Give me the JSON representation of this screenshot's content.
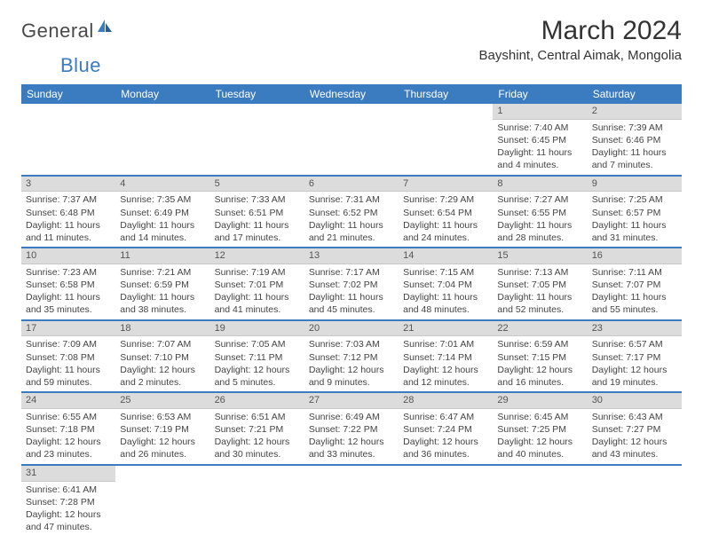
{
  "logo": {
    "part1": "General",
    "part2": "Blue"
  },
  "title": "March 2024",
  "location": "Bayshint, Central Aimak, Mongolia",
  "weekdays": [
    "Sunday",
    "Monday",
    "Tuesday",
    "Wednesday",
    "Thursday",
    "Friday",
    "Saturday"
  ],
  "colors": {
    "header_bar": "#3b7bbf",
    "day_bar": "#dcdcdc",
    "text": "#444444",
    "accent": "#3b7bbf"
  },
  "weeks": [
    [
      {
        "empty": true
      },
      {
        "empty": true
      },
      {
        "empty": true
      },
      {
        "empty": true
      },
      {
        "empty": true
      },
      {
        "day": "1",
        "sunrise": "Sunrise: 7:40 AM",
        "sunset": "Sunset: 6:45 PM",
        "daylight": "Daylight: 11 hours and 4 minutes."
      },
      {
        "day": "2",
        "sunrise": "Sunrise: 7:39 AM",
        "sunset": "Sunset: 6:46 PM",
        "daylight": "Daylight: 11 hours and 7 minutes."
      }
    ],
    [
      {
        "day": "3",
        "sunrise": "Sunrise: 7:37 AM",
        "sunset": "Sunset: 6:48 PM",
        "daylight": "Daylight: 11 hours and 11 minutes."
      },
      {
        "day": "4",
        "sunrise": "Sunrise: 7:35 AM",
        "sunset": "Sunset: 6:49 PM",
        "daylight": "Daylight: 11 hours and 14 minutes."
      },
      {
        "day": "5",
        "sunrise": "Sunrise: 7:33 AM",
        "sunset": "Sunset: 6:51 PM",
        "daylight": "Daylight: 11 hours and 17 minutes."
      },
      {
        "day": "6",
        "sunrise": "Sunrise: 7:31 AM",
        "sunset": "Sunset: 6:52 PM",
        "daylight": "Daylight: 11 hours and 21 minutes."
      },
      {
        "day": "7",
        "sunrise": "Sunrise: 7:29 AM",
        "sunset": "Sunset: 6:54 PM",
        "daylight": "Daylight: 11 hours and 24 minutes."
      },
      {
        "day": "8",
        "sunrise": "Sunrise: 7:27 AM",
        "sunset": "Sunset: 6:55 PM",
        "daylight": "Daylight: 11 hours and 28 minutes."
      },
      {
        "day": "9",
        "sunrise": "Sunrise: 7:25 AM",
        "sunset": "Sunset: 6:57 PM",
        "daylight": "Daylight: 11 hours and 31 minutes."
      }
    ],
    [
      {
        "day": "10",
        "sunrise": "Sunrise: 7:23 AM",
        "sunset": "Sunset: 6:58 PM",
        "daylight": "Daylight: 11 hours and 35 minutes."
      },
      {
        "day": "11",
        "sunrise": "Sunrise: 7:21 AM",
        "sunset": "Sunset: 6:59 PM",
        "daylight": "Daylight: 11 hours and 38 minutes."
      },
      {
        "day": "12",
        "sunrise": "Sunrise: 7:19 AM",
        "sunset": "Sunset: 7:01 PM",
        "daylight": "Daylight: 11 hours and 41 minutes."
      },
      {
        "day": "13",
        "sunrise": "Sunrise: 7:17 AM",
        "sunset": "Sunset: 7:02 PM",
        "daylight": "Daylight: 11 hours and 45 minutes."
      },
      {
        "day": "14",
        "sunrise": "Sunrise: 7:15 AM",
        "sunset": "Sunset: 7:04 PM",
        "daylight": "Daylight: 11 hours and 48 minutes."
      },
      {
        "day": "15",
        "sunrise": "Sunrise: 7:13 AM",
        "sunset": "Sunset: 7:05 PM",
        "daylight": "Daylight: 11 hours and 52 minutes."
      },
      {
        "day": "16",
        "sunrise": "Sunrise: 7:11 AM",
        "sunset": "Sunset: 7:07 PM",
        "daylight": "Daylight: 11 hours and 55 minutes."
      }
    ],
    [
      {
        "day": "17",
        "sunrise": "Sunrise: 7:09 AM",
        "sunset": "Sunset: 7:08 PM",
        "daylight": "Daylight: 11 hours and 59 minutes."
      },
      {
        "day": "18",
        "sunrise": "Sunrise: 7:07 AM",
        "sunset": "Sunset: 7:10 PM",
        "daylight": "Daylight: 12 hours and 2 minutes."
      },
      {
        "day": "19",
        "sunrise": "Sunrise: 7:05 AM",
        "sunset": "Sunset: 7:11 PM",
        "daylight": "Daylight: 12 hours and 5 minutes."
      },
      {
        "day": "20",
        "sunrise": "Sunrise: 7:03 AM",
        "sunset": "Sunset: 7:12 PM",
        "daylight": "Daylight: 12 hours and 9 minutes."
      },
      {
        "day": "21",
        "sunrise": "Sunrise: 7:01 AM",
        "sunset": "Sunset: 7:14 PM",
        "daylight": "Daylight: 12 hours and 12 minutes."
      },
      {
        "day": "22",
        "sunrise": "Sunrise: 6:59 AM",
        "sunset": "Sunset: 7:15 PM",
        "daylight": "Daylight: 12 hours and 16 minutes."
      },
      {
        "day": "23",
        "sunrise": "Sunrise: 6:57 AM",
        "sunset": "Sunset: 7:17 PM",
        "daylight": "Daylight: 12 hours and 19 minutes."
      }
    ],
    [
      {
        "day": "24",
        "sunrise": "Sunrise: 6:55 AM",
        "sunset": "Sunset: 7:18 PM",
        "daylight": "Daylight: 12 hours and 23 minutes."
      },
      {
        "day": "25",
        "sunrise": "Sunrise: 6:53 AM",
        "sunset": "Sunset: 7:19 PM",
        "daylight": "Daylight: 12 hours and 26 minutes."
      },
      {
        "day": "26",
        "sunrise": "Sunrise: 6:51 AM",
        "sunset": "Sunset: 7:21 PM",
        "daylight": "Daylight: 12 hours and 30 minutes."
      },
      {
        "day": "27",
        "sunrise": "Sunrise: 6:49 AM",
        "sunset": "Sunset: 7:22 PM",
        "daylight": "Daylight: 12 hours and 33 minutes."
      },
      {
        "day": "28",
        "sunrise": "Sunrise: 6:47 AM",
        "sunset": "Sunset: 7:24 PM",
        "daylight": "Daylight: 12 hours and 36 minutes."
      },
      {
        "day": "29",
        "sunrise": "Sunrise: 6:45 AM",
        "sunset": "Sunset: 7:25 PM",
        "daylight": "Daylight: 12 hours and 40 minutes."
      },
      {
        "day": "30",
        "sunrise": "Sunrise: 6:43 AM",
        "sunset": "Sunset: 7:27 PM",
        "daylight": "Daylight: 12 hours and 43 minutes."
      }
    ],
    [
      {
        "day": "31",
        "sunrise": "Sunrise: 6:41 AM",
        "sunset": "Sunset: 7:28 PM",
        "daylight": "Daylight: 12 hours and 47 minutes."
      },
      {
        "empty": true
      },
      {
        "empty": true
      },
      {
        "empty": true
      },
      {
        "empty": true
      },
      {
        "empty": true
      },
      {
        "empty": true
      }
    ]
  ]
}
